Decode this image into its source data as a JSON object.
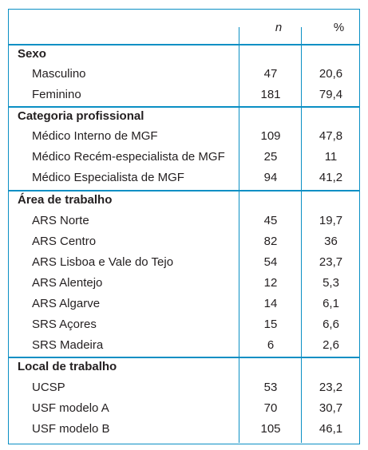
{
  "header": {
    "n_label": "n",
    "pct_label": "%"
  },
  "sections": [
    {
      "title": "Sexo",
      "rows": [
        {
          "label": "Masculino",
          "n": "47",
          "pct": "20,6"
        },
        {
          "label": "Feminino",
          "n": "181",
          "pct": "79,4"
        }
      ]
    },
    {
      "title": "Categoria profissional",
      "rows": [
        {
          "label": "Médico Interno de MGF",
          "n": "109",
          "pct": "47,8"
        },
        {
          "label": "Médico Recém-especialista de MGF",
          "n": "25",
          "pct": "11"
        },
        {
          "label": "Médico Especialista de MGF",
          "n": "94",
          "pct": "41,2"
        }
      ]
    },
    {
      "title": "Área de trabalho",
      "rows": [
        {
          "label": "ARS Norte",
          "n": "45",
          "pct": "19,7"
        },
        {
          "label": "ARS Centro",
          "n": "82",
          "pct": "36"
        },
        {
          "label": "ARS Lisboa e Vale do Tejo",
          "n": "54",
          "pct": "23,7"
        },
        {
          "label": "ARS Alentejo",
          "n": "12",
          "pct": "5,3"
        },
        {
          "label": "ARS Algarve",
          "n": "14",
          "pct": "6,1"
        },
        {
          "label": "SRS Açores",
          "n": "15",
          "pct": "6,6"
        },
        {
          "label": "SRS Madeira",
          "n": "6",
          "pct": "2,6"
        }
      ]
    },
    {
      "title": "Local de trabalho",
      "rows": [
        {
          "label": "UCSP",
          "n": "53",
          "pct": "23,2"
        },
        {
          "label": "USF modelo A",
          "n": "70",
          "pct": "30,7"
        },
        {
          "label": "USF modelo B",
          "n": "105",
          "pct": "46,1"
        }
      ]
    }
  ]
}
